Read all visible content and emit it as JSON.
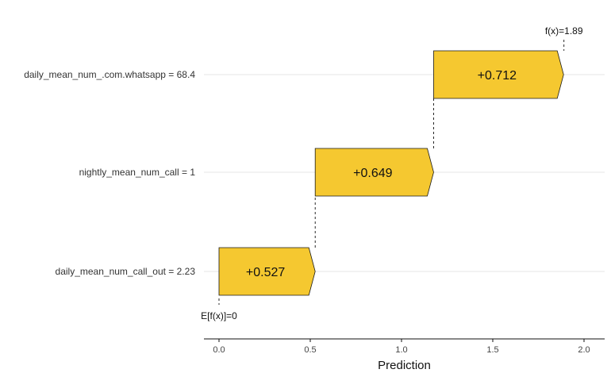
{
  "chart_data": {
    "type": "bar",
    "subtype": "waterfall",
    "base_value": 0,
    "base_label": "E[f(x)]=0",
    "final_value": 1.89,
    "final_label": "f(x)=1.89",
    "features": [
      {
        "name": "daily_mean_num_.com.whatsapp = 68.4",
        "value": 0.712,
        "label": "+0.712"
      },
      {
        "name": "nightly_mean_num_call = 1",
        "value": 0.649,
        "label": "+0.649"
      },
      {
        "name": "daily_mean_num_call_out = 2.23",
        "value": 0.527,
        "label": "+0.527"
      }
    ],
    "xlabel": "Prediction",
    "xlim": [
      -0.08,
      2.12
    ],
    "xticks": [
      0.0,
      0.5,
      1.0,
      1.5,
      2.0
    ],
    "xtick_labels": [
      "0.0",
      "0.5",
      "1.0",
      "1.5",
      "2.0"
    ],
    "grid": "horizontal per feature row",
    "colors": {
      "bar_fill": "#F5C830",
      "bar_stroke": "#1a1a1a",
      "grid": "#e5e5e5",
      "connector": "#111111"
    }
  }
}
